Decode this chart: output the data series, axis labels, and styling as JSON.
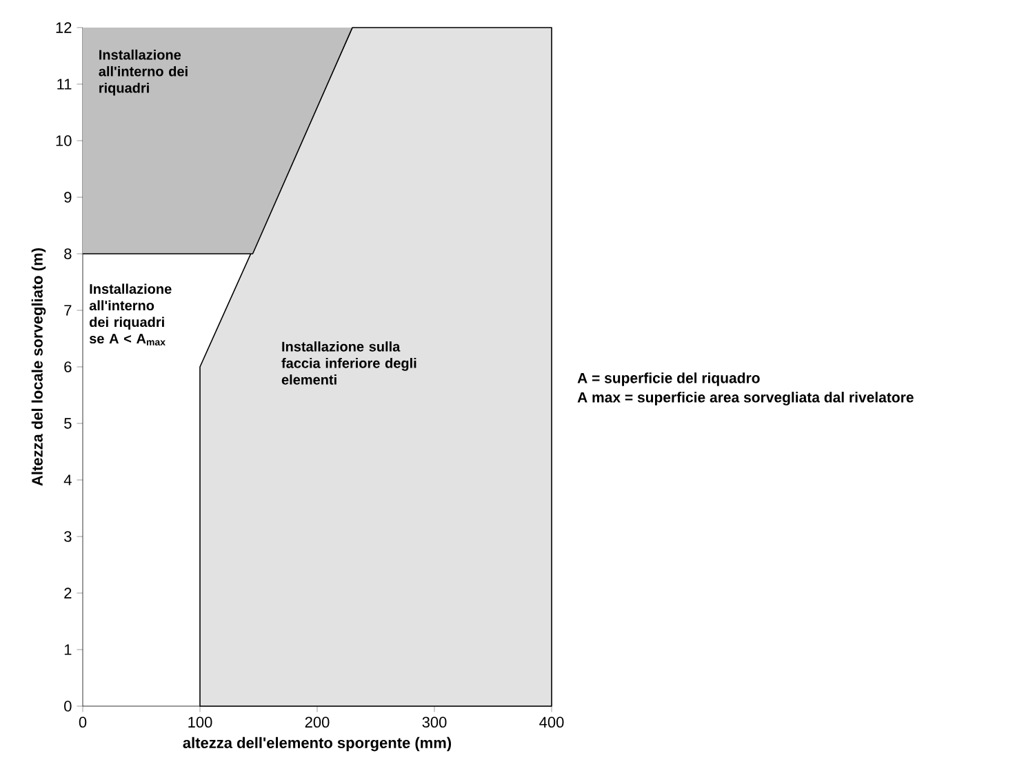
{
  "chart_data": {
    "type": "area",
    "xlabel": "altezza dell'elemento sporgente (mm)",
    "ylabel": "Altezza del locale sorvegliato (m)",
    "xlim": [
      0,
      400
    ],
    "xticks": [
      0,
      100,
      200,
      300,
      400
    ],
    "ylim": [
      0,
      12
    ],
    "yticks": [
      0,
      1,
      2,
      3,
      4,
      5,
      6,
      7,
      8,
      9,
      10,
      11,
      12
    ],
    "series": [
      {
        "color": "#e2e2e2",
        "x": [
          100,
          100,
          230,
          400
        ],
        "values": [
          0,
          6,
          12,
          12
        ]
      },
      {
        "type": "line",
        "color": "#000000",
        "x": [
          0,
          145,
          230
        ],
        "values": [
          8,
          8,
          12
        ],
        "lower": [
          8,
          8,
          12
        ],
        "upper": [
          12,
          12,
          12
        ]
      }
    ],
    "annotations": [
      "Installazione all'interno dei riquadri",
      "Installazione all'interno dei riquadri se A < A$_{max}$",
      "Installazione sulla faccia inferiore degli elementi",
      "A = superficie del riquadro",
      "A max = superficie area sorvegliata dal rivelatore"
    ]
  }
}
